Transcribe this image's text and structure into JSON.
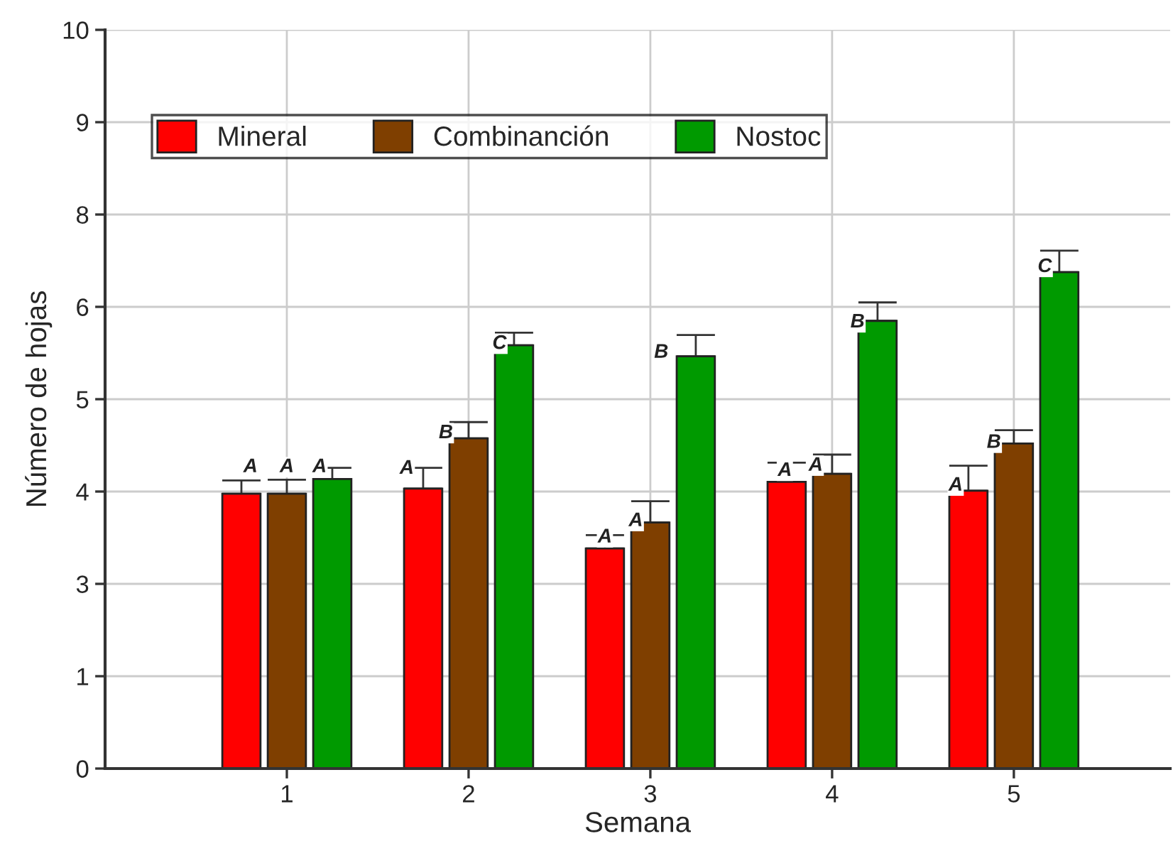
{
  "chart_data": {
    "type": "bar",
    "xlabel": "Semana",
    "ylabel": "Número de hojas",
    "x": [
      1,
      2,
      3,
      4,
      5
    ],
    "xlim": [
      0,
      5.86
    ],
    "xticks": [
      1,
      2,
      3,
      4,
      5
    ],
    "ylim": [
      0,
      10
    ],
    "yticks": [
      0,
      {
        "value": 1.25,
        "label": "1"
      },
      {
        "value": 2.5,
        "label": "3"
      },
      {
        "value": 3.75,
        "label": "4"
      },
      5,
      {
        "value": 6.25,
        "label": "6"
      },
      {
        "value": 7.5,
        "label": "8"
      },
      {
        "value": 8.75,
        "label": "9"
      },
      10
    ],
    "series": [
      {
        "name": "Mineral",
        "color": "#ff0000",
        "values": [
          3.72,
          3.79,
          2.98,
          3.88,
          3.76
        ],
        "errors": [
          [
            3.72,
            3.9
          ],
          [
            3.79,
            4.07
          ],
          [
            2.98,
            3.16
          ],
          [
            3.88,
            4.14
          ],
          [
            3.76,
            4.1
          ]
        ]
      },
      {
        "name": "Combinanción",
        "color": "#7f3f00",
        "values": [
          3.72,
          4.47,
          3.33,
          3.99,
          4.4
        ],
        "errors": [
          [
            3.72,
            3.91
          ],
          [
            4.47,
            4.69
          ],
          [
            3.33,
            3.62
          ],
          [
            3.99,
            4.25
          ],
          [
            4.4,
            4.58
          ]
        ]
      },
      {
        "name": "Nostoc",
        "color": "#009a00",
        "values": [
          3.92,
          5.73,
          5.58,
          6.06,
          6.72
        ],
        "errors": [
          [
            3.92,
            4.07
          ],
          [
            5.73,
            5.9
          ],
          [
            5.58,
            5.87
          ],
          [
            6.06,
            6.31
          ],
          [
            6.72,
            7.01
          ]
        ]
      }
    ],
    "annotations": [
      {
        "text": "A",
        "x": 0.8,
        "y": 4.08
      },
      {
        "text": "A",
        "x": 1.0,
        "y": 4.08
      },
      {
        "text": "A",
        "x": 1.18,
        "y": 4.08
      },
      {
        "text": "A",
        "x": 1.66,
        "y": 4.06
      },
      {
        "text": "B",
        "x": 1.875,
        "y": 4.54
      },
      {
        "text": "C",
        "x": 2.17,
        "y": 5.75
      },
      {
        "text": "A",
        "x": 2.75,
        "y": 3.13
      },
      {
        "text": "A",
        "x": 2.92,
        "y": 3.35
      },
      {
        "text": "B",
        "x": 3.06,
        "y": 5.63
      },
      {
        "text": "A",
        "x": 3.74,
        "y": 4.03
      },
      {
        "text": "A",
        "x": 3.91,
        "y": 4.1
      },
      {
        "text": "B",
        "x": 4.14,
        "y": 6.04
      },
      {
        "text": "A",
        "x": 4.68,
        "y": 3.83
      },
      {
        "text": "B",
        "x": 4.89,
        "y": 4.41
      },
      {
        "text": "C",
        "x": 5.17,
        "y": 6.79
      }
    ],
    "grid": true,
    "legend": "top left"
  }
}
